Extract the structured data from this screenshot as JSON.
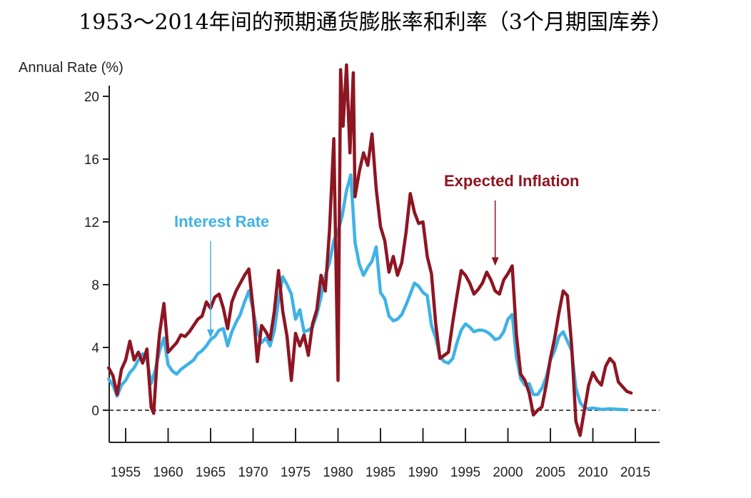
{
  "chart_data": {
    "type": "line",
    "title": "1953～2014年间的预期通货膨胀率和利率（3个月期国库券）",
    "ylabel": "Annual Rate (%)",
    "xlabel": "",
    "xlim": [
      1953,
      2017
    ],
    "ylim": [
      -2.2,
      22
    ],
    "y_ticks": [
      0,
      4,
      8,
      12,
      16,
      20
    ],
    "x_ticks": [
      1955,
      1960,
      1965,
      1970,
      1975,
      1980,
      1985,
      1990,
      1995,
      2000,
      2005,
      2010,
      2015
    ],
    "zero_line": "dashed",
    "grid": false,
    "colors": {
      "interest": "#3fb2e6",
      "inflation": "#8e1522"
    },
    "annotations": [
      {
        "label": "Interest Rate",
        "series": "interest",
        "arrow_to": [
          1965,
          4.6
        ]
      },
      {
        "label": "Expected Inflation",
        "series": "inflation",
        "arrow_to": [
          1998.5,
          9.2
        ]
      }
    ],
    "series": [
      {
        "key": "interest",
        "name": "Interest Rate",
        "points": [
          [
            1953,
            2.0
          ],
          [
            1953.5,
            1.6
          ],
          [
            1954,
            0.9
          ],
          [
            1954.5,
            1.6
          ],
          [
            1955,
            1.9
          ],
          [
            1955.5,
            2.4
          ],
          [
            1956,
            2.7
          ],
          [
            1956.5,
            3.2
          ],
          [
            1957,
            3.6
          ],
          [
            1957.5,
            3.2
          ],
          [
            1958,
            1.7
          ],
          [
            1958.5,
            2.6
          ],
          [
            1959,
            3.8
          ],
          [
            1959.5,
            4.6
          ],
          [
            1960,
            2.9
          ],
          [
            1960.5,
            2.5
          ],
          [
            1961,
            2.3
          ],
          [
            1961.5,
            2.6
          ],
          [
            1962,
            2.8
          ],
          [
            1962.5,
            3.0
          ],
          [
            1963,
            3.2
          ],
          [
            1963.5,
            3.6
          ],
          [
            1964,
            3.8
          ],
          [
            1964.5,
            4.1
          ],
          [
            1965,
            4.5
          ],
          [
            1965.5,
            4.7
          ],
          [
            1966,
            5.1
          ],
          [
            1966.5,
            5.2
          ],
          [
            1967,
            4.1
          ],
          [
            1967.5,
            5.0
          ],
          [
            1968,
            5.6
          ],
          [
            1968.5,
            6.1
          ],
          [
            1969,
            6.9
          ],
          [
            1969.5,
            7.6
          ],
          [
            1970,
            6.4
          ],
          [
            1970.5,
            5.0
          ],
          [
            1971,
            4.3
          ],
          [
            1971.5,
            4.6
          ],
          [
            1972,
            4.1
          ],
          [
            1972.5,
            5.1
          ],
          [
            1973,
            7.0
          ],
          [
            1973.5,
            8.5
          ],
          [
            1974,
            8.0
          ],
          [
            1974.5,
            7.4
          ],
          [
            1975,
            5.8
          ],
          [
            1975.5,
            6.4
          ],
          [
            1976,
            5.0
          ],
          [
            1976.5,
            5.1
          ],
          [
            1977,
            5.3
          ],
          [
            1977.5,
            6.1
          ],
          [
            1978,
            7.2
          ],
          [
            1978.5,
            8.6
          ],
          [
            1979,
            9.4
          ],
          [
            1979.5,
            10.8
          ],
          [
            1980,
            11.4
          ],
          [
            1980.5,
            12.4
          ],
          [
            1981,
            14.0
          ],
          [
            1981.5,
            15.0
          ],
          [
            1982,
            10.7
          ],
          [
            1982.5,
            9.3
          ],
          [
            1983,
            8.6
          ],
          [
            1983.5,
            9.1
          ],
          [
            1984,
            9.5
          ],
          [
            1984.5,
            10.4
          ],
          [
            1985,
            7.5
          ],
          [
            1985.5,
            7.1
          ],
          [
            1986,
            6.0
          ],
          [
            1986.5,
            5.7
          ],
          [
            1987,
            5.8
          ],
          [
            1987.5,
            6.1
          ],
          [
            1988,
            6.7
          ],
          [
            1988.5,
            7.4
          ],
          [
            1989,
            8.1
          ],
          [
            1989.5,
            7.9
          ],
          [
            1990,
            7.5
          ],
          [
            1990.5,
            7.3
          ],
          [
            1991,
            5.4
          ],
          [
            1991.5,
            4.6
          ],
          [
            1992,
            3.4
          ],
          [
            1992.5,
            3.1
          ],
          [
            1993,
            3.0
          ],
          [
            1993.5,
            3.3
          ],
          [
            1994,
            4.3
          ],
          [
            1994.5,
            5.1
          ],
          [
            1995,
            5.5
          ],
          [
            1995.5,
            5.3
          ],
          [
            1996,
            5.0
          ],
          [
            1996.5,
            5.1
          ],
          [
            1997,
            5.1
          ],
          [
            1997.5,
            5.0
          ],
          [
            1998,
            4.8
          ],
          [
            1998.5,
            4.5
          ],
          [
            1999,
            4.6
          ],
          [
            1999.5,
            5.0
          ],
          [
            2000,
            5.8
          ],
          [
            2000.5,
            6.1
          ],
          [
            2001,
            3.4
          ],
          [
            2001.5,
            2.0
          ],
          [
            2002,
            1.6
          ],
          [
            2002.5,
            1.7
          ],
          [
            2003,
            1.0
          ],
          [
            2003.5,
            1.0
          ],
          [
            2004,
            1.4
          ],
          [
            2004.5,
            2.1
          ],
          [
            2005,
            3.2
          ],
          [
            2005.5,
            3.8
          ],
          [
            2006,
            4.7
          ],
          [
            2006.5,
            5.0
          ],
          [
            2007,
            4.4
          ],
          [
            2007.5,
            3.8
          ],
          [
            2008,
            1.4
          ],
          [
            2008.5,
            0.5
          ],
          [
            2009,
            0.15
          ],
          [
            2009.5,
            0.1
          ],
          [
            2010,
            0.14
          ],
          [
            2011,
            0.05
          ],
          [
            2012,
            0.09
          ],
          [
            2013,
            0.06
          ],
          [
            2014,
            0.03
          ]
        ]
      },
      {
        "key": "inflation",
        "name": "Expected Inflation",
        "points": [
          [
            1953,
            2.7
          ],
          [
            1953.5,
            2.2
          ],
          [
            1954,
            1.0
          ],
          [
            1954.5,
            2.6
          ],
          [
            1955,
            3.2
          ],
          [
            1955.5,
            4.4
          ],
          [
            1956,
            3.2
          ],
          [
            1956.5,
            3.7
          ],
          [
            1957,
            3.0
          ],
          [
            1957.5,
            3.9
          ],
          [
            1958,
            0.2
          ],
          [
            1958.3,
            -0.2
          ],
          [
            1958.7,
            3.2
          ],
          [
            1959,
            4.9
          ],
          [
            1959.5,
            6.8
          ],
          [
            1960,
            3.7
          ],
          [
            1960.5,
            4.0
          ],
          [
            1961,
            4.3
          ],
          [
            1961.5,
            4.8
          ],
          [
            1962,
            4.7
          ],
          [
            1962.5,
            5.0
          ],
          [
            1963,
            5.4
          ],
          [
            1963.5,
            5.8
          ],
          [
            1964,
            6.0
          ],
          [
            1964.5,
            6.9
          ],
          [
            1965,
            6.5
          ],
          [
            1965.5,
            7.2
          ],
          [
            1966,
            7.4
          ],
          [
            1966.5,
            6.5
          ],
          [
            1967,
            5.2
          ],
          [
            1967.5,
            6.9
          ],
          [
            1968,
            7.6
          ],
          [
            1968.5,
            8.1
          ],
          [
            1969,
            8.6
          ],
          [
            1969.5,
            9.0
          ],
          [
            1970,
            6.5
          ],
          [
            1970.5,
            3.1
          ],
          [
            1971,
            5.4
          ],
          [
            1971.5,
            5.0
          ],
          [
            1972,
            4.5
          ],
          [
            1972.5,
            6.3
          ],
          [
            1973,
            8.9
          ],
          [
            1973.5,
            6.3
          ],
          [
            1974,
            4.7
          ],
          [
            1974.5,
            1.9
          ],
          [
            1975,
            4.9
          ],
          [
            1975.5,
            4.1
          ],
          [
            1976,
            4.8
          ],
          [
            1976.5,
            3.5
          ],
          [
            1977,
            5.5
          ],
          [
            1977.5,
            6.4
          ],
          [
            1978,
            8.6
          ],
          [
            1978.5,
            7.6
          ],
          [
            1979,
            11.5
          ],
          [
            1979.5,
            17.3
          ],
          [
            1980,
            1.9
          ],
          [
            1980.3,
            21.7
          ],
          [
            1980.6,
            18.1
          ],
          [
            1981,
            22.0
          ],
          [
            1981.4,
            16.4
          ],
          [
            1981.8,
            21.5
          ],
          [
            1982,
            13.6
          ],
          [
            1982.5,
            15.2
          ],
          [
            1983,
            16.4
          ],
          [
            1983.5,
            15.6
          ],
          [
            1984,
            17.6
          ],
          [
            1984.5,
            14.1
          ],
          [
            1985,
            11.7
          ],
          [
            1985.5,
            10.8
          ],
          [
            1986,
            8.8
          ],
          [
            1986.5,
            9.8
          ],
          [
            1987,
            8.6
          ],
          [
            1987.5,
            9.4
          ],
          [
            1988,
            11.3
          ],
          [
            1988.5,
            13.8
          ],
          [
            1989,
            12.6
          ],
          [
            1989.5,
            11.9
          ],
          [
            1990,
            12.0
          ],
          [
            1990.5,
            9.8
          ],
          [
            1991,
            8.7
          ],
          [
            1991.5,
            5.5
          ],
          [
            1992,
            3.3
          ],
          [
            1992.5,
            3.5
          ],
          [
            1993,
            3.7
          ],
          [
            1993.5,
            5.6
          ],
          [
            1994,
            7.3
          ],
          [
            1994.5,
            8.9
          ],
          [
            1995,
            8.6
          ],
          [
            1995.5,
            8.1
          ],
          [
            1996,
            7.4
          ],
          [
            1996.5,
            7.7
          ],
          [
            1997,
            8.1
          ],
          [
            1997.5,
            8.8
          ],
          [
            1998,
            8.3
          ],
          [
            1998.5,
            7.6
          ],
          [
            1999,
            7.4
          ],
          [
            1999.5,
            8.3
          ],
          [
            2000,
            8.7
          ],
          [
            2000.5,
            9.2
          ],
          [
            2001,
            4.8
          ],
          [
            2001.5,
            2.3
          ],
          [
            2002,
            1.9
          ],
          [
            2002.5,
            1.1
          ],
          [
            2003,
            -0.3
          ],
          [
            2003.5,
            0.0
          ],
          [
            2004,
            0.2
          ],
          [
            2004.5,
            1.6
          ],
          [
            2005,
            3.3
          ],
          [
            2005.5,
            4.6
          ],
          [
            2006,
            6.2
          ],
          [
            2006.5,
            7.6
          ],
          [
            2007,
            7.3
          ],
          [
            2007.5,
            4.1
          ],
          [
            2008,
            -0.7
          ],
          [
            2008.5,
            -1.6
          ],
          [
            2009,
            0.0
          ],
          [
            2009.5,
            1.6
          ],
          [
            2010,
            2.4
          ],
          [
            2010.5,
            1.9
          ],
          [
            2011,
            1.6
          ],
          [
            2011.5,
            2.8
          ],
          [
            2012,
            3.3
          ],
          [
            2012.5,
            3.0
          ],
          [
            2013,
            1.8
          ],
          [
            2013.5,
            1.5
          ],
          [
            2014,
            1.2
          ],
          [
            2014.5,
            1.1
          ]
        ]
      }
    ]
  }
}
